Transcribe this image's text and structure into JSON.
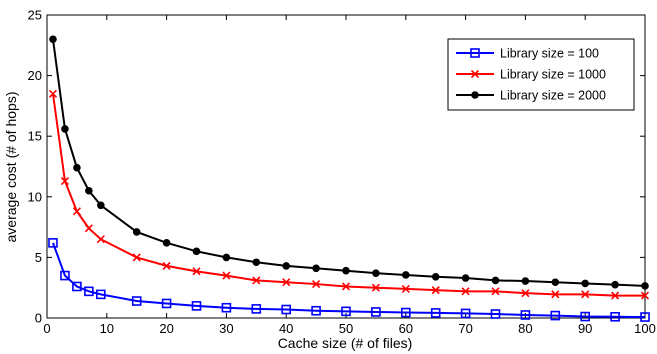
{
  "chart_data": {
    "type": "line",
    "title": "",
    "xlabel": "Cache size (# of files)",
    "ylabel": "average cost (# of hops)",
    "xlim": [
      0,
      100
    ],
    "ylim": [
      0,
      25
    ],
    "xticks": [
      "0",
      "10",
      "20",
      "30",
      "40",
      "50",
      "60",
      "70",
      "80",
      "90",
      "100"
    ],
    "yticks": [
      "0",
      "5",
      "10",
      "15",
      "20",
      "25"
    ],
    "grid": false,
    "legend_position": "top-right",
    "x": [
      1,
      3,
      5,
      7,
      9,
      15,
      20,
      25,
      30,
      35,
      40,
      45,
      50,
      55,
      60,
      65,
      70,
      75,
      80,
      85,
      90,
      95,
      100
    ],
    "series": [
      {
        "name": "Library size = 100",
        "color": "#0000ff",
        "marker": "square",
        "values": [
          6.2,
          3.5,
          2.6,
          2.2,
          1.95,
          1.4,
          1.2,
          1.0,
          0.85,
          0.75,
          0.7,
          0.6,
          0.55,
          0.5,
          0.45,
          0.42,
          0.38,
          0.33,
          0.25,
          0.2,
          0.12,
          0.1,
          0.08
        ]
      },
      {
        "name": "Library size = 1000",
        "color": "#ff0000",
        "marker": "x",
        "values": [
          18.5,
          11.3,
          8.8,
          7.4,
          6.5,
          5.0,
          4.3,
          3.85,
          3.5,
          3.1,
          2.95,
          2.8,
          2.6,
          2.5,
          2.4,
          2.3,
          2.2,
          2.2,
          2.05,
          1.95,
          1.95,
          1.85,
          1.85
        ]
      },
      {
        "name": "Library size = 2000",
        "color": "#000000",
        "marker": "circle",
        "values": [
          23.0,
          15.6,
          12.4,
          10.5,
          9.3,
          7.1,
          6.2,
          5.5,
          5.0,
          4.6,
          4.3,
          4.1,
          3.9,
          3.7,
          3.55,
          3.4,
          3.3,
          3.1,
          3.05,
          2.95,
          2.85,
          2.75,
          2.65
        ]
      }
    ]
  }
}
